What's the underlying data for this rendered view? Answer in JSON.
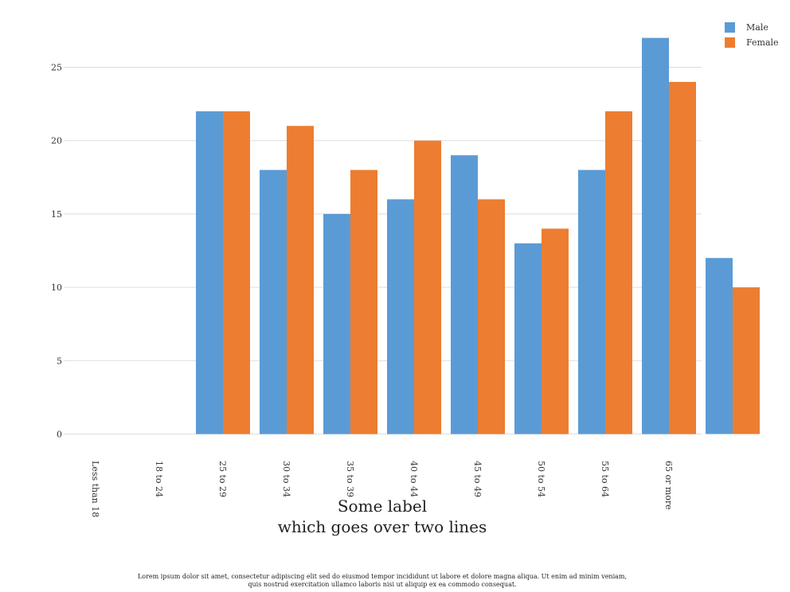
{
  "chart_data": {
    "type": "bar",
    "categories": [
      "Less than 18",
      "18 to 24",
      "25 to 29",
      "30 to 34",
      "35 to 39",
      "40 to 44",
      "45 to 49",
      "50 to 54",
      "55 to 64",
      "65 or more"
    ],
    "series": [
      {
        "name": "Male",
        "color": "#5b9bd5",
        "values": [
          0,
          22,
          18,
          15,
          16,
          19,
          13,
          18,
          27,
          12
        ]
      },
      {
        "name": "Female",
        "color": "#ed7d31",
        "values": [
          0,
          22,
          21,
          18,
          20,
          16,
          14,
          22,
          24,
          10
        ]
      }
    ],
    "xlabel_lines": [
      "Some label",
      "which goes over two lines"
    ],
    "ylim": [
      0,
      27
    ],
    "yticks": [
      0,
      5,
      10,
      15,
      20,
      25
    ],
    "grid": true,
    "legend_position": "top-right",
    "x_tick_rotation": "vertical"
  },
  "caption_lines": [
    "Lorem ipsum dolor sit amet, consectetur adipiscing elit sed do eiusmod tempor incididunt ut labore et dolore magna aliqua. Ut enim ad minim veniam,",
    "quis nostrud exercitation ullamco laboris nisi ut aliquip ex ea commodo consequat."
  ]
}
